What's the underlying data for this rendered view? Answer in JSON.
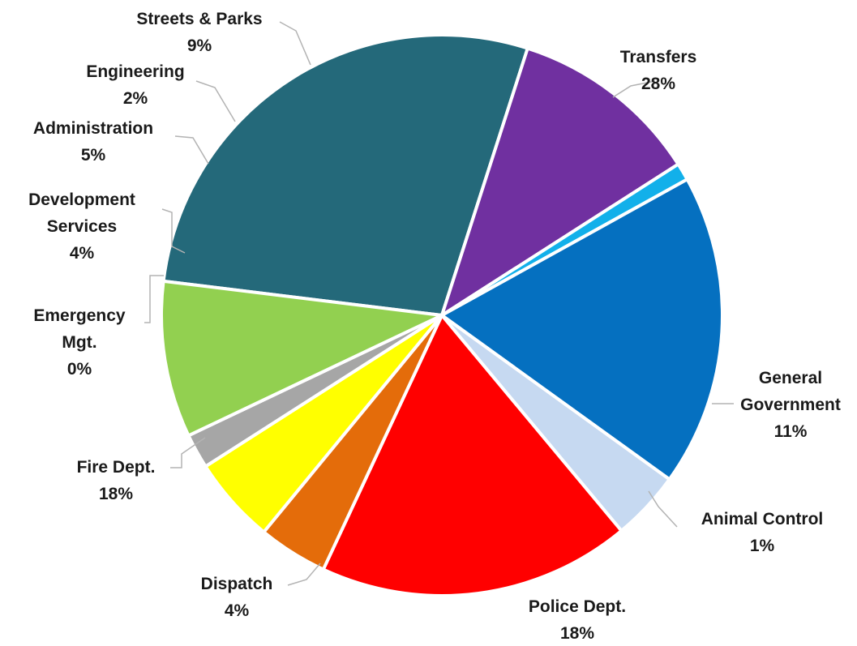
{
  "chart_data": {
    "type": "pie",
    "slices": [
      {
        "label": [
          "Transfers"
        ],
        "value": 28,
        "pct": "28%",
        "color": "#24697a"
      },
      {
        "label": [
          "General",
          "Government"
        ],
        "value": 11,
        "pct": "11%",
        "color": "#7030a0"
      },
      {
        "label": [
          "Animal Control"
        ],
        "value": 1,
        "pct": "1%",
        "color": "#12b0ea"
      },
      {
        "label": [
          "Police Dept."
        ],
        "value": 18,
        "pct": "18%",
        "color": "#0570c0"
      },
      {
        "label": [
          "Dispatch"
        ],
        "value": 4,
        "pct": "4%",
        "color": "#c6d9f1"
      },
      {
        "label": [
          "Fire Dept."
        ],
        "value": 18,
        "pct": "18%",
        "color": "#ff0000"
      },
      {
        "label": [
          "Emergency",
          "Mgt."
        ],
        "value": 0,
        "pct": "0%",
        "color": "#ffc000"
      },
      {
        "label": [
          "Development",
          "Services"
        ],
        "value": 4,
        "pct": "4%",
        "color": "#e46c0a"
      },
      {
        "label": [
          "Administration"
        ],
        "value": 5,
        "pct": "5%",
        "color": "#ffff00"
      },
      {
        "label": [
          "Engineering"
        ],
        "value": 2,
        "pct": "2%",
        "color": "#a6a6a6"
      },
      {
        "label": [
          "Streets & Parks"
        ],
        "value": 9,
        "pct": "9%",
        "color": "#92d050"
      }
    ]
  }
}
